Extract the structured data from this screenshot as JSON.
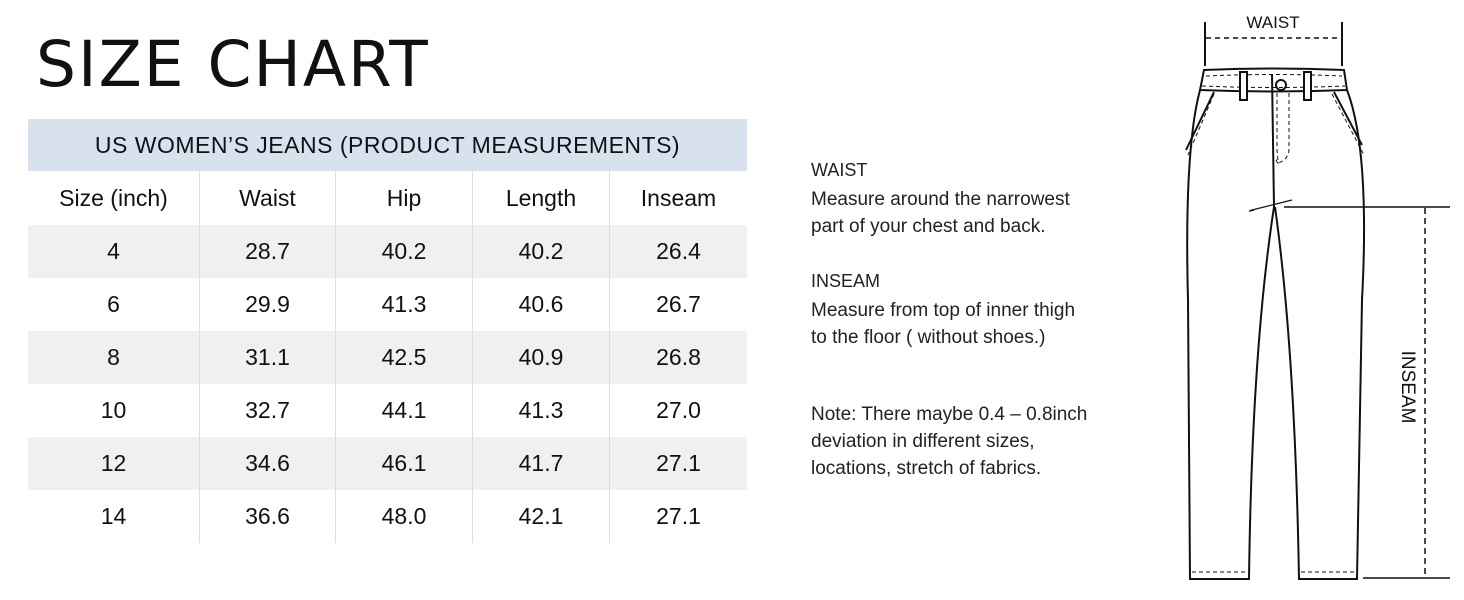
{
  "title": "SIZE CHART",
  "table": {
    "caption": "US WOMEN’S JEANS (PRODUCT MEASUREMENTS)",
    "headers": [
      "Size (inch)",
      "Waist",
      "Hip",
      "Length",
      "Inseam"
    ],
    "rows": [
      [
        "4",
        "28.7",
        "40.2",
        "40.2",
        "26.4"
      ],
      [
        "6",
        "29.9",
        "41.3",
        "40.6",
        "26.7"
      ],
      [
        "8",
        "31.1",
        "42.5",
        "40.9",
        "26.8"
      ],
      [
        "10",
        "32.7",
        "44.1",
        "41.3",
        "27.0"
      ],
      [
        "12",
        "34.6",
        "46.1",
        "41.7",
        "27.1"
      ],
      [
        "14",
        "36.6",
        "48.0",
        "42.1",
        "27.1"
      ]
    ]
  },
  "notes": {
    "waist_heading": "WAIST",
    "waist_lines": [
      "Measure around the narrowest",
      "part of your chest and back."
    ],
    "inseam_heading": "INSEAM",
    "inseam_lines": [
      "Measure from top of inner thigh",
      "to the floor ( without shoes.)"
    ],
    "note_lines": [
      "Note: There maybe 0.4 – 0.8inch",
      "deviation in different sizes,",
      "locations, stretch of fabrics."
    ]
  },
  "diagram": {
    "waist_label": "WAIST",
    "inseam_label": "INSEAM"
  },
  "colors": {
    "caption_bg": "#d8e2ee",
    "alt_row_bg": "#eff0f2"
  }
}
